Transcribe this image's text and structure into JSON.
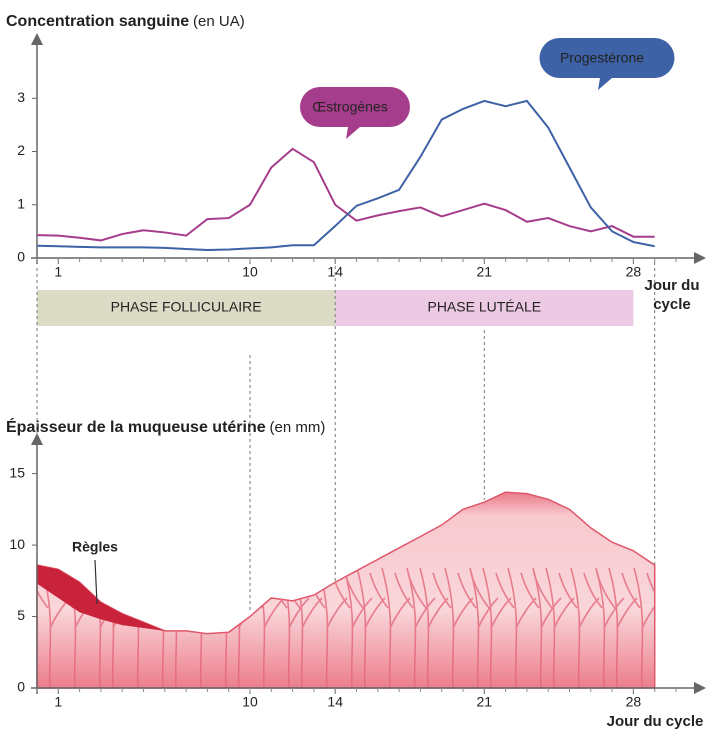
{
  "chart_data": [
    {
      "type": "line",
      "title": "Concentration sanguine",
      "title_unit": "(en UA)",
      "x_label": "Jour du cycle",
      "x": [
        0,
        1,
        2,
        3,
        4,
        5,
        6,
        7,
        8,
        9,
        10,
        11,
        12,
        13,
        14,
        15,
        16,
        17,
        18,
        19,
        20,
        21,
        22,
        23,
        24,
        25,
        26,
        27,
        28,
        29
      ],
      "xlim": [
        0,
        30
      ],
      "xticks": [
        1,
        10,
        14,
        21,
        28
      ],
      "ylim": [
        0,
        4
      ],
      "yticks": [
        0,
        1,
        2,
        3
      ],
      "series": [
        {
          "name": "Œstrogènes",
          "color": "#a63d8c",
          "values": [
            0.43,
            0.42,
            0.38,
            0.33,
            0.45,
            0.52,
            0.48,
            0.42,
            0.73,
            0.75,
            1.0,
            1.7,
            2.05,
            1.8,
            1.0,
            0.7,
            0.8,
            0.88,
            0.95,
            0.78,
            0.9,
            1.02,
            0.9,
            0.68,
            0.75,
            0.6,
            0.5,
            0.6,
            0.4,
            0.4
          ]
        },
        {
          "name": "Progestérone",
          "color": "#3e62a6",
          "values": [
            0.23,
            0.22,
            0.21,
            0.2,
            0.2,
            0.2,
            0.19,
            0.17,
            0.15,
            0.16,
            0.18,
            0.2,
            0.24,
            0.24,
            0.6,
            0.98,
            1.12,
            1.28,
            1.9,
            2.6,
            2.8,
            2.95,
            2.85,
            2.95,
            2.45,
            1.7,
            0.95,
            0.5,
            0.3,
            0.22
          ]
        }
      ],
      "phases": [
        {
          "label": "PHASE FOLLICULAIRE",
          "start": 0,
          "end": 14,
          "color": "#dcdcc6"
        },
        {
          "label": "PHASE LUTÉALE",
          "start": 14,
          "end": 28,
          "color": "#eccae3"
        }
      ]
    },
    {
      "type": "area",
      "title": "Épaisseur de la muqueuse utérine",
      "title_unit": "(en mm)",
      "x_label": "Jour du cycle",
      "x": [
        0,
        1,
        2,
        3,
        4,
        5,
        6,
        7,
        8,
        9,
        10,
        11,
        12,
        13,
        14,
        15,
        16,
        17,
        18,
        19,
        20,
        21,
        22,
        23,
        24,
        25,
        26,
        27,
        28,
        29
      ],
      "xlim": [
        0,
        30
      ],
      "xticks": [
        1,
        10,
        14,
        21,
        28
      ],
      "ylim": [
        0,
        17
      ],
      "yticks": [
        0,
        5,
        10,
        15
      ],
      "color": "#f2a3ad",
      "values": [
        8.6,
        8.3,
        7.4,
        6.0,
        5.2,
        4.6,
        4.0,
        4.0,
        3.8,
        3.9,
        5.0,
        6.3,
        6.1,
        6.5,
        7.4,
        8.2,
        9.0,
        9.8,
        10.6,
        11.4,
        12.5,
        13.0,
        13.7,
        13.6,
        13.2,
        12.5,
        11.2,
        10.2,
        9.6,
        8.6
      ],
      "menses": {
        "label": "Règles",
        "color": "#c8233a",
        "x": [
          0,
          1,
          2,
          3,
          4,
          5,
          6
        ],
        "lower": [
          7.3,
          6.3,
          5.3,
          4.8,
          4.4,
          4.2,
          4.0
        ]
      }
    }
  ]
}
